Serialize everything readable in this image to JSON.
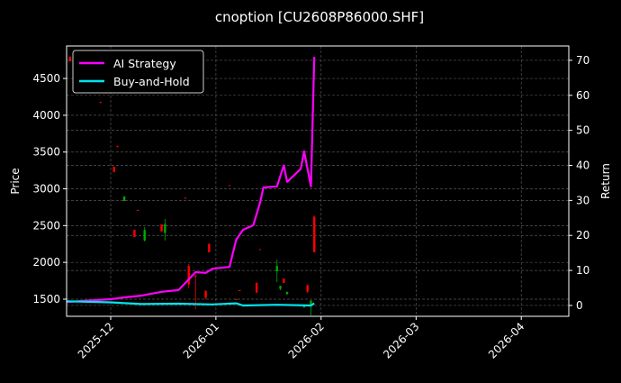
{
  "chart_data": {
    "type": "line",
    "title": "cnoption [CU2608P86000.SHF]",
    "ylabel": "Price",
    "y2label": "Return",
    "xlabel": "",
    "xlim": [
      "2025-11-18",
      "2026-04-15"
    ],
    "ylim": [
      1267,
      4942
    ],
    "y2lim": [
      -3.1,
      74.1
    ],
    "grid": true,
    "legend_placement": "upper-left",
    "x_ticks": [
      "2025-12",
      "2026-01",
      "2026-02",
      "2026-03",
      "2026-04"
    ],
    "x_tick_dates": [
      "2025-12-01",
      "2026-01-01",
      "2026-02-01",
      "2026-03-01",
      "2026-04-01"
    ],
    "y_ticks": [
      1500,
      2000,
      2500,
      3000,
      3500,
      4000,
      4500
    ],
    "y2_ticks": [
      0,
      10,
      20,
      30,
      40,
      50,
      60,
      70
    ],
    "colors": {
      "up": "#ff0000",
      "down": "#00aa00",
      "ai": "#ff00ff",
      "bh": "#00e5ee"
    },
    "candles": [
      {
        "date": "2025-11-19",
        "open": 4734,
        "close": 4795,
        "high": 4800,
        "low": 4730
      },
      {
        "date": "2025-11-28",
        "open": 4170,
        "close": 4180,
        "high": 4185,
        "low": 4165
      },
      {
        "date": "2025-12-02",
        "open": 3227,
        "close": 3300,
        "high": 3300,
        "low": 3227
      },
      {
        "date": "2025-12-03",
        "open": 3570,
        "close": 3580,
        "high": 3590,
        "low": 3570
      },
      {
        "date": "2025-12-05",
        "open": 2896,
        "close": 2835,
        "high": 2896,
        "low": 2835
      },
      {
        "date": "2025-12-08",
        "open": 2345,
        "close": 2443,
        "high": 2443,
        "low": 2345
      },
      {
        "date": "2025-12-09",
        "open": 2700,
        "close": 2713,
        "high": 2713,
        "low": 2700
      },
      {
        "date": "2025-12-11",
        "open": 2440,
        "close": 2300,
        "high": 2480,
        "low": 2284
      },
      {
        "date": "2025-12-16",
        "open": 2420,
        "close": 2517,
        "high": 2517,
        "low": 2420
      },
      {
        "date": "2025-12-17",
        "open": 2520,
        "close": 2400,
        "high": 2590,
        "low": 2296
      },
      {
        "date": "2025-12-23",
        "open": 2870,
        "close": 2880,
        "high": 2880,
        "low": 2870
      },
      {
        "date": "2025-12-24",
        "open": 1700,
        "close": 1950,
        "high": 1978,
        "low": 1647
      },
      {
        "date": "2025-12-26",
        "open": 1820,
        "close": 1820,
        "high": 1830,
        "low": 1365
      },
      {
        "date": "2025-12-29",
        "open": 1520,
        "close": 1610,
        "high": 1622,
        "low": 1500
      },
      {
        "date": "2025-12-30",
        "open": 2137,
        "close": 2250,
        "high": 2260,
        "low": 2137
      },
      {
        "date": "2026-01-05",
        "open": 3040,
        "close": 3050,
        "high": 3050,
        "low": 3040
      },
      {
        "date": "2026-01-07",
        "open": 1490,
        "close": 1500,
        "high": 1505,
        "low": 1490
      },
      {
        "date": "2026-01-08",
        "open": 1610,
        "close": 1622,
        "high": 1622,
        "low": 1610
      },
      {
        "date": "2026-01-13",
        "open": 1590,
        "close": 1720,
        "high": 1730,
        "low": 1585
      },
      {
        "date": "2026-01-14",
        "open": 2170,
        "close": 2180,
        "high": 2180,
        "low": 2170
      },
      {
        "date": "2026-01-19",
        "open": 1950,
        "close": 1880,
        "high": 2040,
        "low": 1730
      },
      {
        "date": "2026-01-20",
        "open": 1680,
        "close": 1640,
        "high": 1680,
        "low": 1620
      },
      {
        "date": "2026-01-21",
        "open": 1720,
        "close": 1780,
        "high": 1780,
        "low": 1720
      },
      {
        "date": "2026-01-22",
        "open": 1600,
        "close": 1570,
        "high": 1600,
        "low": 1560
      },
      {
        "date": "2026-01-27",
        "open": 1400,
        "close": 1390,
        "high": 1410,
        "low": 1380
      },
      {
        "date": "2026-01-28",
        "open": 1600,
        "close": 1690,
        "high": 1700,
        "low": 1585
      },
      {
        "date": "2026-01-29",
        "open": 1480,
        "close": 1420,
        "high": 1488,
        "low": 1280
      },
      {
        "date": "2026-01-30",
        "open": 2137,
        "close": 2620,
        "high": 2640,
        "low": 2137
      }
    ],
    "series": [
      {
        "name": "AI Strategy",
        "axis": "right",
        "points": [
          [
            "2025-11-18",
            1.0
          ],
          [
            "2025-12-01",
            1.8
          ],
          [
            "2025-12-05",
            2.3
          ],
          [
            "2025-12-10",
            2.8
          ],
          [
            "2025-12-16",
            3.9
          ],
          [
            "2025-12-21",
            4.4
          ],
          [
            "2025-12-26",
            9.5
          ],
          [
            "2025-12-29",
            9.3
          ],
          [
            "2025-12-31",
            10.5
          ],
          [
            "2026-01-05",
            11.0
          ],
          [
            "2026-01-07",
            18.8
          ],
          [
            "2026-01-09",
            21.6
          ],
          [
            "2026-01-12",
            22.9
          ],
          [
            "2026-01-14",
            29.3
          ],
          [
            "2026-01-15",
            33.7
          ],
          [
            "2026-01-19",
            34.0
          ],
          [
            "2026-01-21",
            40.0
          ],
          [
            "2026-01-22",
            35.3
          ],
          [
            "2026-01-26",
            39.0
          ],
          [
            "2026-01-27",
            44.0
          ],
          [
            "2026-01-29",
            34.0
          ],
          [
            "2026-01-30",
            71.0
          ]
        ]
      },
      {
        "name": "Buy-and-Hold",
        "axis": "right",
        "points": [
          [
            "2025-11-18",
            1.2
          ],
          [
            "2025-12-01",
            0.9
          ],
          [
            "2025-12-10",
            0.4
          ],
          [
            "2025-12-21",
            0.5
          ],
          [
            "2025-12-31",
            0.3
          ],
          [
            "2026-01-07",
            0.6
          ],
          [
            "2026-01-09",
            0.0
          ],
          [
            "2026-01-19",
            0.2
          ],
          [
            "2026-01-29",
            0.0
          ],
          [
            "2026-01-30",
            0.6
          ]
        ]
      }
    ]
  }
}
